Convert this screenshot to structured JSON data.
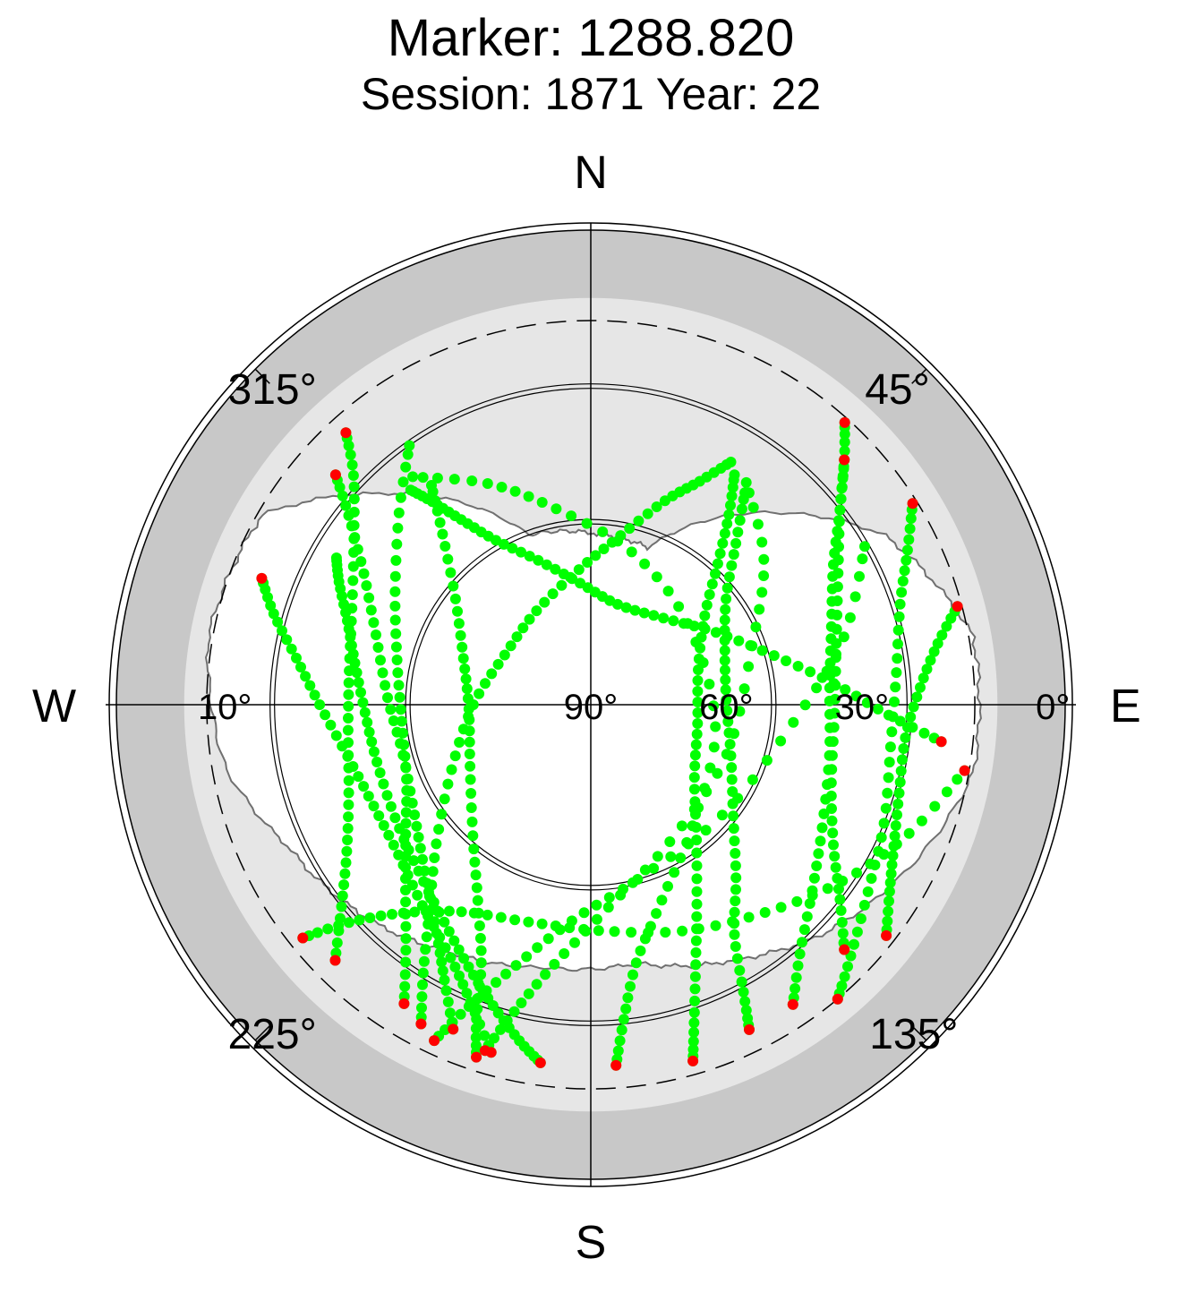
{
  "chart_data": {
    "type": "scatter",
    "projection": "polar-skyplot",
    "title": "Marker: 1288.820",
    "subtitle": "Session: 1871 Year: 22",
    "cardinals": {
      "north": "N",
      "south": "S",
      "east": "E",
      "west": "W"
    },
    "azimuth_ticks": [
      {
        "az": 45,
        "label": "45°"
      },
      {
        "az": 135,
        "label": "135°"
      },
      {
        "az": 225,
        "label": "225°"
      },
      {
        "az": 315,
        "label": "315°"
      }
    ],
    "elevation_ticks": [
      {
        "el": 0,
        "label": "0°",
        "side": "east"
      },
      {
        "el": 30,
        "label": "30°",
        "side": "east"
      },
      {
        "el": 60,
        "label": "60°",
        "side": "east"
      },
      {
        "el": 90,
        "label": "90°",
        "side": "center"
      },
      {
        "el": 10,
        "label": "10°",
        "side": "west"
      }
    ],
    "elevation_range": [
      -15,
      90
    ],
    "reference_circles_el": [
      50,
      20
    ],
    "cutoff_dashed_el": 5,
    "horizon_mask": [
      [
        0,
        52
      ],
      [
        20,
        53
      ],
      [
        45,
        30
      ],
      [
        60,
        15
      ],
      [
        80,
        4
      ],
      [
        100,
        4
      ],
      [
        120,
        12
      ],
      [
        135,
        18
      ],
      [
        150,
        25
      ],
      [
        170,
        32
      ],
      [
        190,
        31
      ],
      [
        210,
        27
      ],
      [
        225,
        22
      ],
      [
        245,
        16
      ],
      [
        260,
        8
      ],
      [
        280,
        4
      ],
      [
        300,
        6
      ],
      [
        315,
        24
      ],
      [
        340,
        50
      ],
      [
        360,
        52
      ]
    ],
    "colors": {
      "in_view": "#00ff00",
      "low_elevation": "#ff0000",
      "outer_ring": "#c8c8c8",
      "inner_ring": "#e6e6e6",
      "mask_line": "#707070"
    },
    "series": [
      {
        "points": [
          [
            300,
            25
          ],
          [
            296,
            28
          ],
          [
            289,
            33
          ],
          [
            280,
            37
          ],
          [
            268,
            40
          ],
          [
            255,
            41
          ],
          [
            240,
            40
          ],
          [
            226,
            37
          ],
          [
            214,
            32
          ],
          [
            205,
            26
          ],
          [
            198,
            20
          ],
          [
            192,
            14
          ],
          [
            188,
            10
          ]
        ]
      },
      {
        "points": [
          [
            291,
            12
          ],
          [
            286,
            17
          ],
          [
            279,
            24
          ],
          [
            270,
            30
          ],
          [
            258,
            35
          ],
          [
            245,
            37
          ],
          [
            232,
            36
          ],
          [
            220,
            32
          ],
          [
            209,
            26
          ],
          [
            202,
            19
          ],
          [
            196,
            10
          ]
        ]
      },
      {
        "points": [
          [
            312,
            14
          ],
          [
            308,
            22
          ],
          [
            300,
            32
          ],
          [
            288,
            40
          ],
          [
            272,
            45
          ],
          [
            255,
            47
          ],
          [
            238,
            44
          ],
          [
            225,
            38
          ],
          [
            214,
            29
          ],
          [
            208,
            21
          ],
          [
            203,
            12
          ]
        ]
      },
      {
        "points": [
          [
            320,
            28
          ],
          [
            322,
            33
          ],
          [
            325,
            40
          ],
          [
            330,
            48
          ],
          [
            340,
            56
          ],
          [
            355,
            63
          ],
          [
            15,
            67
          ],
          [
            40,
            65
          ],
          [
            60,
            58
          ],
          [
            75,
            48
          ],
          [
            85,
            36
          ],
          [
            92,
            24
          ],
          [
            96,
            12
          ]
        ]
      },
      {
        "points": [
          [
            324,
            30
          ],
          [
            319,
            40
          ],
          [
            308,
            52
          ],
          [
            290,
            60
          ],
          [
            268,
            63
          ],
          [
            243,
            60
          ],
          [
            222,
            51
          ],
          [
            210,
            40
          ],
          [
            203,
            28
          ],
          [
            200,
            16
          ],
          [
            198,
            8
          ]
        ]
      },
      {
        "points": [
          [
            325,
            20
          ],
          [
            315,
            30
          ],
          [
            300,
            40
          ],
          [
            283,
            46
          ],
          [
            265,
            48
          ],
          [
            248,
            46
          ],
          [
            235,
            40
          ],
          [
            225,
            32
          ],
          [
            217,
            22
          ],
          [
            212,
            12
          ]
        ]
      },
      {
        "points": [
          [
            318,
            9
          ],
          [
            314,
            17
          ],
          [
            305,
            26
          ],
          [
            292,
            33
          ],
          [
            278,
            36
          ],
          [
            264,
            36
          ],
          [
            250,
            33
          ],
          [
            239,
            27
          ],
          [
            231,
            19
          ],
          [
            225,
            10
          ]
        ]
      },
      {
        "points": [
          [
            32,
            30
          ],
          [
            36,
            38
          ],
          [
            42,
            48
          ],
          [
            52,
            58
          ],
          [
            72,
            65
          ],
          [
            100,
            66
          ],
          [
            125,
            62
          ],
          [
            142,
            52
          ],
          [
            152,
            40
          ],
          [
            158,
            28
          ],
          [
            162,
            16
          ],
          [
            164,
            8
          ]
        ]
      },
      {
        "points": [
          [
            30,
            28
          ],
          [
            26,
            35
          ],
          [
            20,
            42
          ],
          [
            10,
            52
          ],
          [
            355,
            60
          ],
          [
            330,
            66
          ],
          [
            300,
            68
          ],
          [
            270,
            64
          ],
          [
            245,
            56
          ],
          [
            228,
            44
          ],
          [
            218,
            32
          ],
          [
            212,
            20
          ],
          [
            208,
            10
          ]
        ]
      },
      {
        "points": [
          [
            36,
            32
          ],
          [
            42,
            42
          ],
          [
            52,
            52
          ],
          [
            68,
            58
          ],
          [
            88,
            60
          ],
          [
            110,
            57
          ],
          [
            128,
            50
          ],
          [
            140,
            40
          ],
          [
            148,
            30
          ],
          [
            152,
            18
          ],
          [
            154,
            10
          ]
        ]
      },
      {
        "points": [
          [
            46,
            12
          ],
          [
            52,
            20
          ],
          [
            60,
            28
          ],
          [
            72,
            34
          ],
          [
            86,
            37
          ],
          [
            102,
            36
          ],
          [
            118,
            32
          ],
          [
            130,
            26
          ],
          [
            140,
            18
          ],
          [
            146,
            10
          ]
        ]
      },
      {
        "points": [
          [
            58,
            6
          ],
          [
            64,
            12
          ],
          [
            72,
            18
          ],
          [
            84,
            22
          ],
          [
            98,
            23
          ],
          [
            112,
            20
          ],
          [
            124,
            16
          ],
          [
            134,
            10
          ],
          [
            140,
            5
          ]
        ]
      },
      {
        "points": [
          [
            75,
            6
          ],
          [
            80,
            12
          ],
          [
            87,
            17
          ],
          [
            96,
            20
          ],
          [
            106,
            19
          ],
          [
            115,
            16
          ],
          [
            122,
            12
          ],
          [
            128,
            7
          ]
        ]
      },
      {
        "points": [
          [
            42,
            6
          ],
          [
            46,
            12
          ],
          [
            52,
            20
          ],
          [
            62,
            28
          ],
          [
            76,
            34
          ],
          [
            92,
            36
          ],
          [
            108,
            34
          ],
          [
            120,
            28
          ],
          [
            128,
            20
          ],
          [
            134,
            12
          ]
        ]
      },
      {
        "points": [
          [
            100,
            6
          ],
          [
            112,
            14
          ],
          [
            125,
            22
          ],
          [
            140,
            30
          ],
          [
            158,
            36
          ],
          [
            178,
            40
          ],
          [
            196,
            40
          ],
          [
            212,
            36
          ],
          [
            222,
            28
          ],
          [
            228,
            18
          ],
          [
            231,
            8
          ]
        ]
      },
      {
        "points": [
          [
            35,
            30
          ],
          [
            50,
            40
          ],
          [
            70,
            52
          ],
          [
            110,
            58
          ],
          [
            150,
            55
          ],
          [
            175,
            45
          ],
          [
            188,
            32
          ],
          [
            194,
            20
          ],
          [
            197,
            10
          ]
        ]
      },
      {
        "points": [
          [
            322,
            26
          ],
          [
            335,
            36
          ],
          [
            350,
            46
          ],
          [
            15,
            55
          ],
          [
            50,
            62
          ],
          [
            100,
            62
          ],
          [
            140,
            55
          ],
          [
            160,
            44
          ],
          [
            170,
            32
          ],
          [
            174,
            20
          ],
          [
            176,
            10
          ]
        ]
      },
      {
        "points": [
          [
            60,
            20
          ],
          [
            75,
            32
          ],
          [
            95,
            45
          ],
          [
            130,
            52
          ],
          [
            165,
            50
          ],
          [
            185,
            42
          ],
          [
            196,
            30
          ],
          [
            202,
            18
          ],
          [
            205,
            8
          ]
        ]
      }
    ]
  }
}
